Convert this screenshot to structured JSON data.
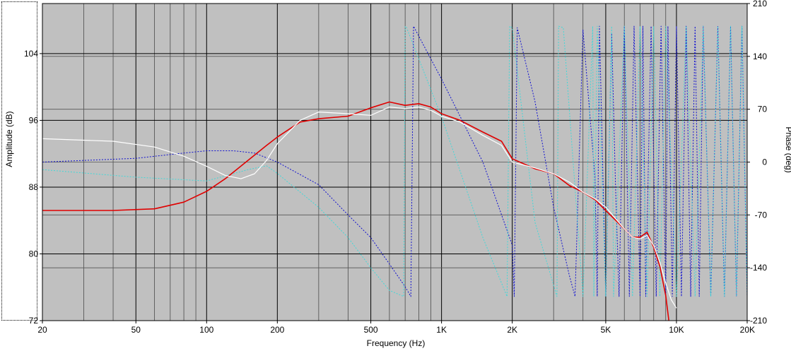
{
  "chart_data": {
    "type": "line",
    "xlabel": "Frequency (Hz)",
    "ylabel": "Amplitude (dB)",
    "y2label": "Phase (deg)",
    "xscale": "log",
    "xlim": [
      20,
      20000
    ],
    "ylim": [
      72,
      110
    ],
    "y2lim": [
      -210,
      210
    ],
    "grid": true,
    "x_ticks": [
      {
        "value": 20,
        "label": "20"
      },
      {
        "value": 50,
        "label": "50"
      },
      {
        "value": 100,
        "label": "100"
      },
      {
        "value": 200,
        "label": "200"
      },
      {
        "value": 500,
        "label": "500"
      },
      {
        "value": 1000,
        "label": "1K"
      },
      {
        "value": 2000,
        "label": "2K"
      },
      {
        "value": 5000,
        "label": "5K"
      },
      {
        "value": 10000,
        "label": "10K"
      },
      {
        "value": 20000,
        "label": "20K"
      }
    ],
    "y_ticks": [
      72,
      80,
      88,
      96,
      104
    ],
    "y2_ticks": [
      -210,
      -140,
      -70,
      0,
      70,
      140,
      210
    ],
    "colors": {
      "plot_bg": "#c0c0c0",
      "grid": "#000000",
      "amp_red": "#e00000",
      "amp_white": "#ffffff",
      "phase_blue": "#1010d0",
      "phase_cyan": "#40d8d8"
    },
    "series": [
      {
        "color": "red",
        "style": "solid",
        "axis": "left",
        "x": [
          20,
          40,
          60,
          80,
          100,
          120,
          150,
          180,
          200,
          250,
          300,
          400,
          500,
          600,
          700,
          800,
          900,
          1000,
          1200,
          1500,
          1800,
          2000,
          2500,
          3000,
          3500,
          4000,
          4500,
          5000,
          6000,
          6500,
          7000,
          7500,
          8000,
          8500,
          9000,
          9300
        ],
        "y": [
          85.2,
          85.2,
          85.4,
          86.2,
          87.5,
          89.0,
          91.2,
          93.0,
          94.0,
          95.8,
          96.2,
          96.5,
          97.5,
          98.2,
          97.8,
          98.0,
          97.6,
          96.8,
          96.0,
          94.6,
          93.5,
          91.4,
          90.2,
          89.6,
          88.2,
          87.4,
          86.5,
          85.2,
          83.0,
          82.0,
          82.0,
          82.6,
          80.8,
          78.5,
          75.0,
          71.8
        ]
      },
      {
        "color": "white",
        "style": "solid",
        "axis": "left",
        "x": [
          20,
          40,
          60,
          80,
          100,
          120,
          140,
          160,
          180,
          200,
          250,
          300,
          400,
          500,
          600,
          700,
          800,
          900,
          1000,
          1200,
          1500,
          1800,
          2000,
          2500,
          3000,
          3500,
          4000,
          4500,
          5000,
          6000,
          6500,
          7000,
          7500,
          8000,
          8500,
          9000,
          9500,
          10000
        ],
        "y": [
          93.8,
          93.5,
          92.8,
          91.7,
          90.5,
          89.4,
          89.0,
          89.6,
          91.2,
          93.2,
          96.0,
          97.0,
          96.8,
          96.6,
          97.6,
          97.4,
          97.6,
          97.2,
          96.5,
          95.8,
          94.2,
          93.0,
          91.0,
          90.3,
          89.6,
          88.6,
          87.4,
          86.6,
          85.6,
          83.0,
          82.0,
          81.8,
          82.2,
          81.0,
          79.0,
          76.5,
          74.5,
          73.5
        ]
      },
      {
        "color": "blue",
        "style": "dotted",
        "axis": "right",
        "x": [
          20,
          50,
          80,
          100,
          130,
          160,
          200,
          300,
          400,
          500,
          600,
          700,
          740,
          760,
          1000,
          1500,
          2000,
          2040,
          2100,
          2500,
          3000,
          3500,
          3700,
          4000,
          4500,
          4600,
          4700,
          5000,
          5300,
          5500,
          5700,
          6000,
          6300,
          6600,
          7000,
          7200,
          7400,
          7800,
          8200,
          8600,
          9000,
          9200,
          9600,
          10000,
          10500,
          11000,
          11500,
          12000,
          12500,
          13000,
          14000,
          15000,
          16000,
          17000,
          18000,
          19000,
          20000
        ],
        "y": [
          0,
          5,
          12,
          15,
          15,
          12,
          0,
          -30,
          -70,
          -100,
          -135,
          -165,
          -178,
          180,
          110,
          0,
          -110,
          -178,
          178,
          80,
          -60,
          -150,
          -178,
          175,
          -20,
          -178,
          180,
          -178,
          170,
          -30,
          -178,
          180,
          -178,
          180,
          -178,
          180,
          -178,
          180,
          -178,
          180,
          -178,
          180,
          -178,
          180,
          -178,
          180,
          -178,
          180,
          -178,
          180,
          -178,
          180,
          -178,
          180,
          -178,
          180,
          -178
        ]
      },
      {
        "color": "cyan",
        "style": "dotted",
        "axis": "right",
        "x": [
          20,
          50,
          100,
          150,
          180,
          200,
          300,
          400,
          500,
          600,
          690,
          700,
          710,
          1000,
          1500,
          1900,
          1950,
          2000,
          2500,
          3100,
          3150,
          3300,
          4000,
          4400,
          4450,
          4600,
          5000,
          5300,
          5400,
          6000,
          6500,
          7000,
          7500,
          8000,
          8500,
          9000,
          10000,
          11000,
          12000,
          13000,
          14000,
          15000,
          16000,
          17000,
          18000,
          19000,
          20000
        ],
        "y": [
          -10,
          -20,
          -25,
          -10,
          -5,
          -15,
          -60,
          -100,
          -140,
          -170,
          -178,
          180,
          178,
          60,
          -100,
          -178,
          180,
          178,
          -80,
          -178,
          180,
          178,
          -178,
          180,
          -178,
          180,
          -178,
          180,
          -178,
          180,
          -178,
          180,
          -178,
          180,
          -178,
          180,
          -178,
          180,
          -178,
          180,
          -178,
          180,
          -178,
          180,
          -178,
          180,
          -178
        ]
      }
    ]
  }
}
